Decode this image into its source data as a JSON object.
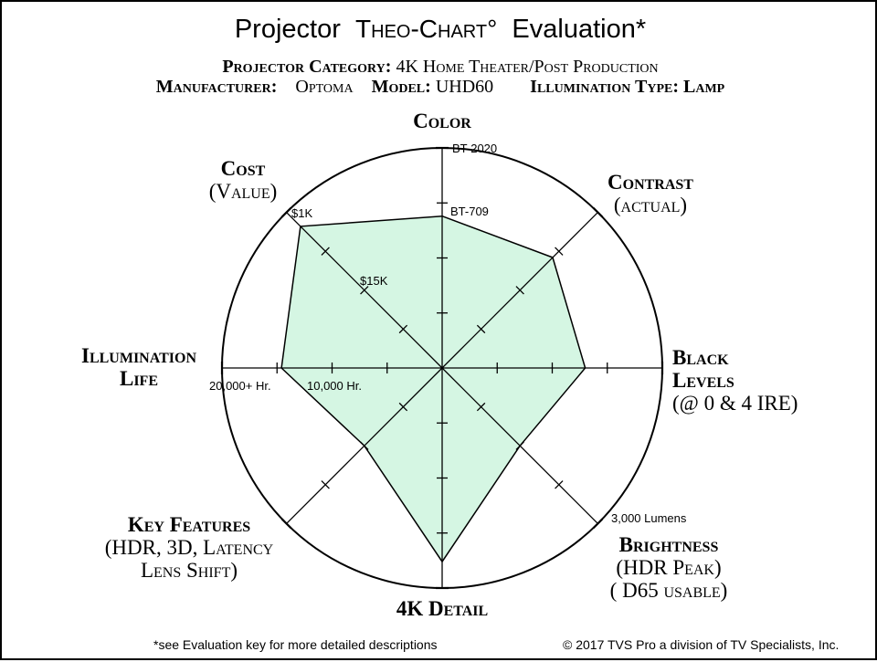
{
  "header": {
    "title_prefix": "Projector",
    "title_brand": "Theo-Chart°",
    "title_suffix": "Evaluation*",
    "category_label": "Projector Category:",
    "category_value": "4K Home Theater/Post Production",
    "manufacturer_label": "Manufacturer:",
    "manufacturer_value": "Optoma",
    "model_label": "Model:",
    "model_value": "UHD60",
    "illumination_label": "Illumination Type:",
    "illumination_value": "Lamp"
  },
  "axes": {
    "color": {
      "line1": "Color"
    },
    "contrast": {
      "line1": "Contrast",
      "line2": "(actual)"
    },
    "black": {
      "line1": "Black",
      "line2": "Levels",
      "line3": "(@ 0 & 4 IRE)"
    },
    "brightness": {
      "line1": "Brightness",
      "line2": "(HDR Peak)",
      "line3": "( D65 usable)"
    },
    "detail": {
      "line1": "4K Detail"
    },
    "features": {
      "line1": "Key Features",
      "line2": "(HDR, 3D, Latency",
      "line3": "Lens Shift)"
    },
    "life": {
      "line1": "Illumination",
      "line2": "Life"
    },
    "cost": {
      "line1": "Cost",
      "line2": "(Value)"
    }
  },
  "tick_labels": {
    "bt2020": "BT-2020",
    "bt709": "BT-709",
    "cost_1k": "$1K",
    "cost_15k": "$15K",
    "life_20000": "20,000+ Hr.",
    "life_10000": "10,000 Hr.",
    "lumens_3000": "3,000 Lumens"
  },
  "footer": {
    "note": "*see Evaluation key for more detailed descriptions",
    "copyright": "© 2017 TVS Pro a division of TV Specialists, Inc."
  },
  "chart_data": {
    "type": "radar",
    "scale_max": 1.0,
    "ticks_per_axis": 4,
    "grid": "circle",
    "fill_color": "#d5f6e3",
    "axes": [
      "Color",
      "Contrast (actual)",
      "Black Levels (@ 0 & 4 IRE)",
      "Brightness (HDR Peak) ( D65 usable)",
      "4K Detail",
      "Key Features (HDR, 3D, Latency Lens Shift)",
      "Illumination Life",
      "Cost (Value)"
    ],
    "values": [
      0.69,
      0.71,
      0.65,
      0.5,
      0.88,
      0.5,
      0.73,
      0.91
    ]
  }
}
